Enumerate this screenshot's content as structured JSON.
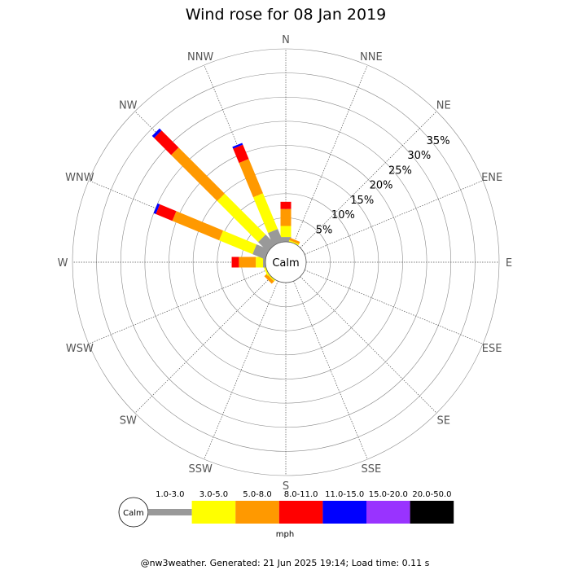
{
  "chart_data": {
    "type": "wind-rose",
    "title": "Wind rose for 08 Jan 2019",
    "calm_label": "Calm",
    "directions": [
      "N",
      "NNE",
      "NE",
      "ENE",
      "E",
      "ESE",
      "SE",
      "SSE",
      "S",
      "SSW",
      "SW",
      "WSW",
      "W",
      "WNW",
      "NW",
      "NNW"
    ],
    "radial_ticks": [
      5,
      10,
      15,
      20,
      25,
      30,
      35
    ],
    "radial_tick_suffix": "%",
    "radial_max": 40,
    "speed_bins": [
      "1.0-3.0",
      "3.0-5.0",
      "5.0-8.0",
      "8.0-11.0",
      "11.0-15.0",
      "15.0-20.0",
      "20.0-50.0"
    ],
    "colors": [
      "#999999",
      "#ffff00",
      "#ff9900",
      "#ff0000",
      "#0000ff",
      "#9933ff",
      "#000000"
    ],
    "speed_unit": "mph",
    "series": [
      {
        "name": "1.0-3.0",
        "values": [
          1.0,
          0,
          0,
          0,
          0,
          0,
          0,
          0,
          0,
          0,
          0,
          0,
          0.5,
          2.8,
          2.8,
          2.8
        ]
      },
      {
        "name": "3.0-5.0",
        "values": [
          2.3,
          0.3,
          0,
          0,
          0,
          0,
          0,
          0,
          0,
          0,
          0.3,
          0.4,
          1.5,
          7.5,
          12.0,
          8.0
        ]
      },
      {
        "name": "5.0-8.0",
        "values": [
          3.5,
          0.5,
          0,
          0,
          0,
          0,
          0,
          0,
          0,
          0,
          0.7,
          0,
          3.5,
          10.5,
          13.5,
          7.7
        ]
      },
      {
        "name": "8.0-11.0",
        "values": [
          1.5,
          0,
          0,
          0,
          0,
          0,
          0,
          0,
          0,
          0,
          0,
          0,
          1.5,
          3.7,
          5.0,
          3.2
        ]
      },
      {
        "name": "11.0-15.0",
        "values": [
          0,
          0,
          0,
          0,
          0,
          0,
          0,
          0,
          0,
          0,
          0,
          0,
          0,
          0.5,
          0.6,
          0.4
        ]
      },
      {
        "name": "15.0-20.0",
        "values": [
          0,
          0,
          0,
          0,
          0,
          0,
          0,
          0,
          0,
          0,
          0,
          0,
          0,
          0,
          0,
          0
        ]
      },
      {
        "name": "20.0-50.0",
        "values": [
          0,
          0,
          0,
          0,
          0,
          0,
          0,
          0,
          0,
          0,
          0,
          0,
          0,
          0,
          0,
          0
        ]
      }
    ],
    "grid": true,
    "legend_placement": "bottom"
  },
  "footer": "@nw3weather. Generated: 21 Jun 2025 19:14; Load time: 0.11 s"
}
